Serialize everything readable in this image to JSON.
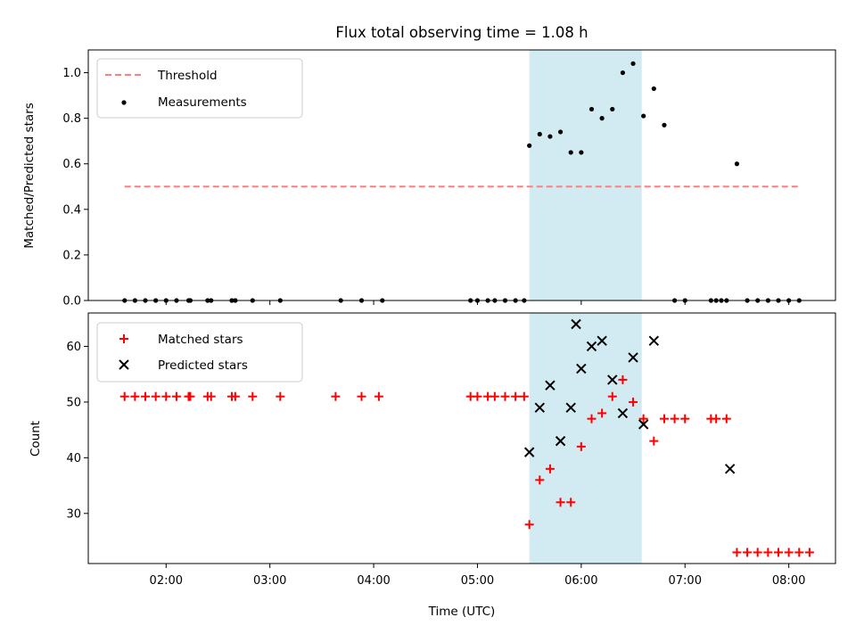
{
  "chart_data": [
    {
      "type": "scatter",
      "title": "Flux total observing time = 1.08 h",
      "xlabel": "",
      "ylabel": "Matched/Predicted stars",
      "ylim": [
        0,
        1.1
      ],
      "yticks": [
        0.0,
        0.2,
        0.4,
        0.6,
        0.8,
        1.0
      ],
      "ytick_labels": [
        "0.0",
        "0.2",
        "0.4",
        "0.6",
        "0.8",
        "1.0"
      ],
      "xlim": [
        "01:15",
        "08:27"
      ],
      "grid": false,
      "legend_position": "top-left",
      "shaded_interval": {
        "start": "05:30",
        "end": "06:35",
        "color": "#add8e6"
      },
      "series": [
        {
          "name": "Threshold",
          "kind": "dashed-line",
          "color": "#ff7f7f",
          "x": [
            "01:36",
            "08:06"
          ],
          "y": [
            0.5,
            0.5
          ]
        },
        {
          "name": "Measurements",
          "kind": "points",
          "color": "#000000",
          "x": [
            "01:36",
            "01:42",
            "01:48",
            "01:54",
            "02:00",
            "02:06",
            "02:13",
            "02:14",
            "02:24",
            "02:26",
            "02:38",
            "02:40",
            "02:50",
            "03:06",
            "03:41",
            "03:53",
            "04:05",
            "04:56",
            "05:00",
            "05:06",
            "05:10",
            "05:16",
            "05:22",
            "05:27",
            "05:30",
            "05:36",
            "05:42",
            "05:48",
            "05:54",
            "06:00",
            "06:06",
            "06:12",
            "06:18",
            "06:24",
            "06:30",
            "06:36",
            "06:42",
            "06:48",
            "06:54",
            "07:00",
            "07:15",
            "07:18",
            "07:21",
            "07:24",
            "07:30",
            "07:36",
            "07:42",
            "07:48",
            "07:54",
            "08:00",
            "08:06"
          ],
          "y": [
            0,
            0,
            0,
            0,
            0,
            0,
            0,
            0,
            0,
            0,
            0,
            0,
            0,
            0,
            0,
            0,
            0,
            0,
            0,
            0,
            0,
            0,
            0,
            0,
            0.68,
            0.73,
            0.72,
            0.74,
            0.65,
            0.65,
            0.84,
            0.8,
            0.84,
            1.0,
            1.04,
            0.81,
            0.93,
            0.77,
            0,
            0,
            0,
            0,
            0,
            0,
            0.6,
            0,
            0,
            0,
            0,
            0,
            0
          ]
        }
      ]
    },
    {
      "type": "scatter",
      "title": "",
      "xlabel": "Time (UTC)",
      "ylabel": "Count",
      "ylim": [
        21,
        66
      ],
      "yticks": [
        30,
        40,
        50,
        60
      ],
      "ytick_labels": [
        "30",
        "40",
        "50",
        "60"
      ],
      "xlim": [
        "01:15",
        "08:27"
      ],
      "xticks": [
        "02:00",
        "03:00",
        "04:00",
        "05:00",
        "06:00",
        "07:00",
        "08:00"
      ],
      "xtick_labels": [
        "02:00",
        "03:00",
        "04:00",
        "05:00",
        "06:00",
        "07:00",
        "08:00"
      ],
      "grid": false,
      "legend_position": "top-left",
      "shaded_interval": {
        "start": "05:30",
        "end": "06:35",
        "color": "#add8e6"
      },
      "series": [
        {
          "name": "Matched stars",
          "kind": "plus",
          "color": "#ff0000",
          "x": [
            "01:36",
            "01:42",
            "01:48",
            "01:54",
            "02:00",
            "02:06",
            "02:13",
            "02:14",
            "02:24",
            "02:26",
            "02:38",
            "02:40",
            "02:50",
            "03:06",
            "03:38",
            "03:53",
            "04:03",
            "04:56",
            "05:00",
            "05:06",
            "05:10",
            "05:16",
            "05:22",
            "05:27",
            "05:30",
            "05:36",
            "05:42",
            "05:48",
            "05:54",
            "06:00",
            "06:06",
            "06:12",
            "06:18",
            "06:24",
            "06:30",
            "06:36",
            "06:42",
            "06:48",
            "06:54",
            "07:00",
            "07:15",
            "07:18",
            "07:24",
            "07:30",
            "07:36",
            "07:42",
            "07:48",
            "07:54",
            "08:00",
            "08:06",
            "08:12"
          ],
          "y": [
            51,
            51,
            51,
            51,
            51,
            51,
            51,
            51,
            51,
            51,
            51,
            51,
            51,
            51,
            51,
            51,
            51,
            51,
            51,
            51,
            51,
            51,
            51,
            51,
            28,
            36,
            38,
            32,
            32,
            42,
            47,
            48,
            51,
            54,
            50,
            47,
            43,
            47,
            47,
            47,
            47,
            47,
            47,
            23,
            23,
            23,
            23,
            23,
            23,
            23,
            23
          ]
        },
        {
          "name": "Predicted stars",
          "kind": "cross",
          "color": "#000000",
          "x": [
            "05:30",
            "05:36",
            "05:42",
            "05:48",
            "05:54",
            "05:57",
            "06:00",
            "06:06",
            "06:12",
            "06:18",
            "06:24",
            "06:30",
            "06:36",
            "06:42",
            "07:26"
          ],
          "y": [
            41,
            49,
            53,
            43,
            49,
            64,
            56,
            60,
            61,
            54,
            48,
            58,
            46,
            61,
            38
          ]
        }
      ]
    }
  ]
}
